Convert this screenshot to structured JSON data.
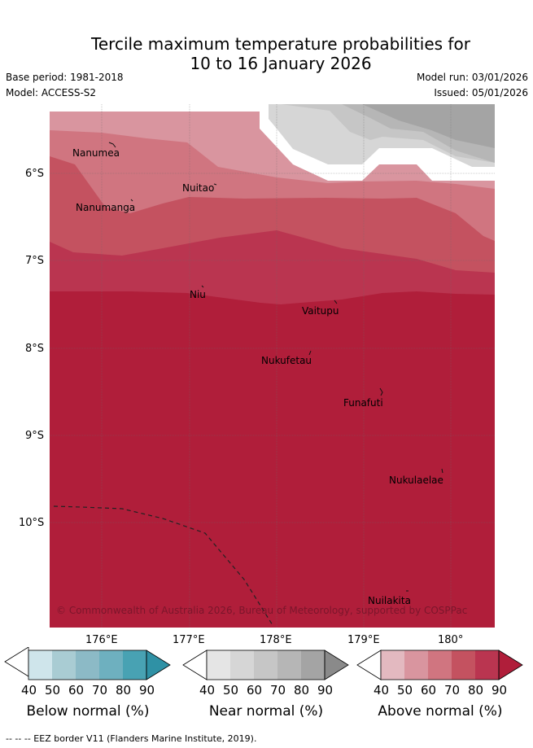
{
  "title": {
    "line1": "Tercile maximum temperature probabilities for",
    "line2": "10 to 16 January 2026"
  },
  "meta": {
    "base_period": "Base period: 1981-2018",
    "model": "Model: ACCESS-S2",
    "model_run": "Model run: 03/01/2026",
    "issued": "Issued: 05/01/2026"
  },
  "map": {
    "lat_labels": [
      "6°S",
      "7°S",
      "8°S",
      "9°S",
      "10°S"
    ],
    "lon_labels": [
      "176°E",
      "177°E",
      "178°E",
      "179°E",
      "180°"
    ],
    "places": [
      "Nanumea",
      "Nuitao",
      "Nanumanga",
      "Niu",
      "Vaitupu",
      "Nukufetau",
      "Funafuti",
      "Nukulaelae",
      "Nuilakita"
    ],
    "copyright": "© Commonwealth of Australia 2026, Bureau of Meteorology, supported by COSPPac"
  },
  "legend": {
    "ticks": [
      "40",
      "50",
      "60",
      "70",
      "80",
      "90"
    ],
    "below": {
      "title": "Below normal (%)",
      "colors": [
        "#cfe5eb",
        "#a9ccd3",
        "#8cbac6",
        "#6eb0bf",
        "#48a2b3",
        "#2f91a5"
      ]
    },
    "near": {
      "title": "Near normal (%)",
      "colors": [
        "#e5e5e5",
        "#d6d6d6",
        "#c6c6c6",
        "#b6b6b6",
        "#a4a4a4",
        "#8a8a8a"
      ]
    },
    "above": {
      "title": "Above normal (%)",
      "colors": [
        "#e3b9c0",
        "#d9959f",
        "#d07580",
        "#c45260",
        "#ba3550",
        "#b01e3a"
      ]
    }
  },
  "footnote": "--  --  -- EEZ border V11 (Flanders Marine Institute, 2019)."
}
